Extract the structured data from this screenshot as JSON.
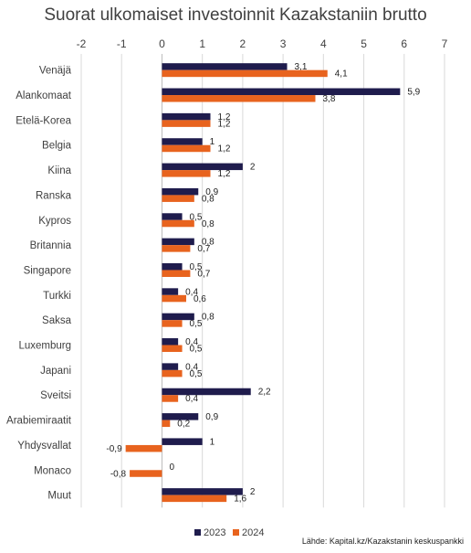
{
  "chart_data": {
    "type": "bar",
    "orientation": "horizontal",
    "title": "Suorat ulkomaiset investoinnit Kazakstaniin brutto",
    "source": "Lähde: Kapital.kz/Kazakstanin keskuspankki",
    "xlim": [
      -2,
      7
    ],
    "xticks": [
      "-2",
      "-1",
      "0",
      "1",
      "2",
      "3",
      "4",
      "5",
      "6",
      "7"
    ],
    "grid": true,
    "legend_position": "bottom",
    "categories": [
      "Venäjä",
      "Alankomaat",
      "Etelä-Korea",
      "Belgia",
      "Kiina",
      "Ranska",
      "Kypros",
      "Britannia",
      "Singapore",
      "Turkki",
      "Saksa",
      "Luxemburg",
      "Japani",
      "Sveitsi",
      "Arabiemiraatit",
      "Yhdysvallat",
      "Monaco",
      "Muut"
    ],
    "series": [
      {
        "name": "2023",
        "color": "#1f1c4d",
        "values": [
          3.1,
          5.9,
          1.2,
          1,
          2,
          0.9,
          0.5,
          0.8,
          0.5,
          0.4,
          0.8,
          0.4,
          0.4,
          2.2,
          0.9,
          1,
          0,
          2
        ],
        "labels": [
          "3,1",
          "5,9",
          "1,2",
          "1",
          "2",
          "0,9",
          "0,5",
          "0,8",
          "0,5",
          "0,4",
          "0,8",
          "0,4",
          "0,4",
          "2,2",
          "0,9",
          "1",
          "0",
          "2"
        ]
      },
      {
        "name": "2024",
        "color": "#e8631e",
        "values": [
          4.1,
          3.8,
          1.2,
          1.2,
          1.2,
          0.8,
          0.8,
          0.7,
          0.7,
          0.6,
          0.5,
          0.5,
          0.5,
          0.4,
          0.2,
          -0.9,
          -0.8,
          1.6
        ],
        "labels": [
          "4,1",
          "3,8",
          "1,2",
          "1,2",
          "1,2",
          "0,8",
          "0,8",
          "0,7",
          "0,7",
          "0,6",
          "0,5",
          "0,5",
          "0,5",
          "0,4",
          "0,2",
          "-0,9",
          "-0,8",
          "1,6"
        ]
      }
    ]
  }
}
